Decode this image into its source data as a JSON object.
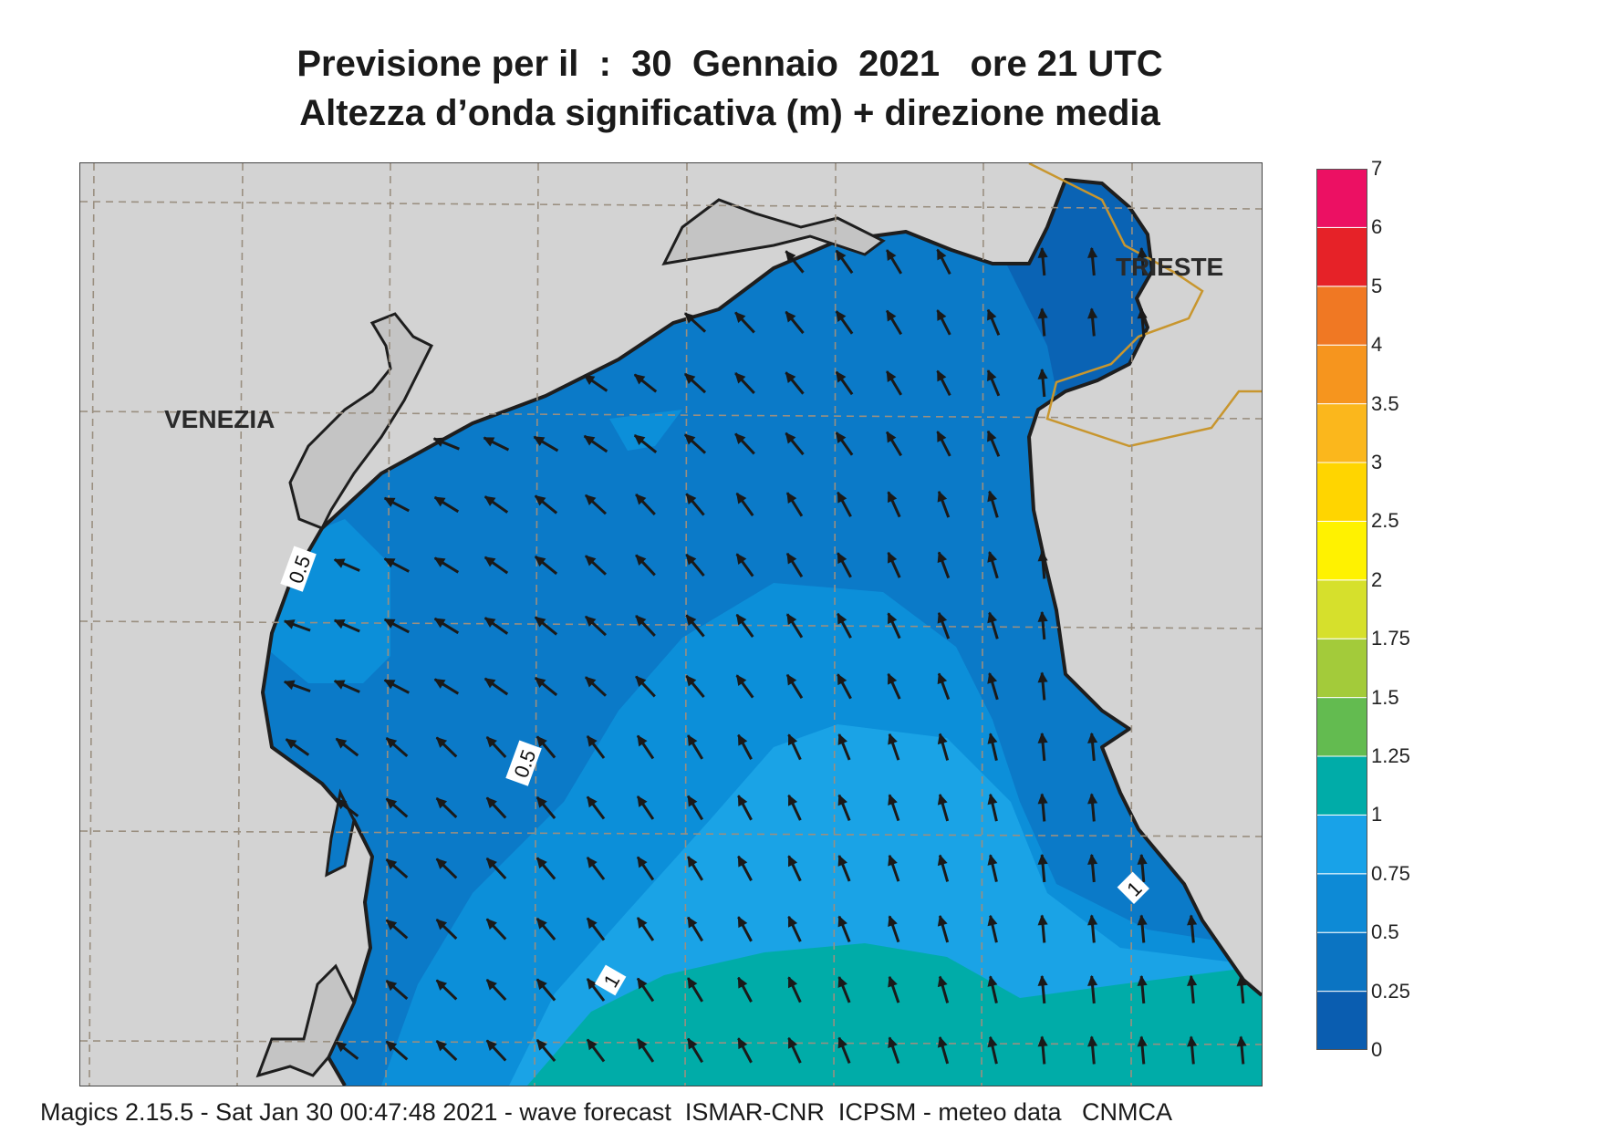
{
  "title": {
    "line1": "Previsione per il  :  30  Gennaio  2021   ore 21 UTC",
    "line2": "Altezza d’onda significativa (m) + direzione media"
  },
  "map": {
    "cities": [
      {
        "name": "VENEZIA"
      },
      {
        "name": "TRIESTE"
      }
    ],
    "contour_labels": [
      "0.5",
      "0.5",
      "1",
      "1"
    ],
    "land_color": "#d3d3d3",
    "coast_color": "#1e1e1e",
    "border_color": "#c8962e",
    "grid_style": "dashed",
    "arrow_direction": "mostly north / north-west toward the coast",
    "bands": [
      {
        "range": "0–0.25",
        "color": "#0a63b4"
      },
      {
        "range": "0.25–0.5",
        "color": "#0b7ac8"
      },
      {
        "range": "0.5–0.75",
        "color": "#0c8fd9"
      },
      {
        "range": "0.75–1",
        "color": "#1aa3e6"
      },
      {
        "range": "1–1.25",
        "color": "#00aca8"
      }
    ]
  },
  "legend": {
    "levels": [
      "0",
      "0.25",
      "0.5",
      "0.75",
      "1",
      "1.25",
      "1.5",
      "1.75",
      "2",
      "2.5",
      "3",
      "3.5",
      "4",
      "5",
      "6",
      "7"
    ],
    "colors": [
      "#0a5db0",
      "#0b74c2",
      "#0d8ad6",
      "#18a2e8",
      "#00aca8",
      "#63bb50",
      "#a3cb3a",
      "#d6e02c",
      "#fff200",
      "#ffd500",
      "#fbb71c",
      "#f6951e",
      "#f07823",
      "#e62228",
      "#ec1063"
    ]
  },
  "footer": "Magics 2.15.5 - Sat Jan 30 00:47:48 2021 - wave forecast  ISMAR-CNR  ICPSM - meteo data   CNMCA"
}
